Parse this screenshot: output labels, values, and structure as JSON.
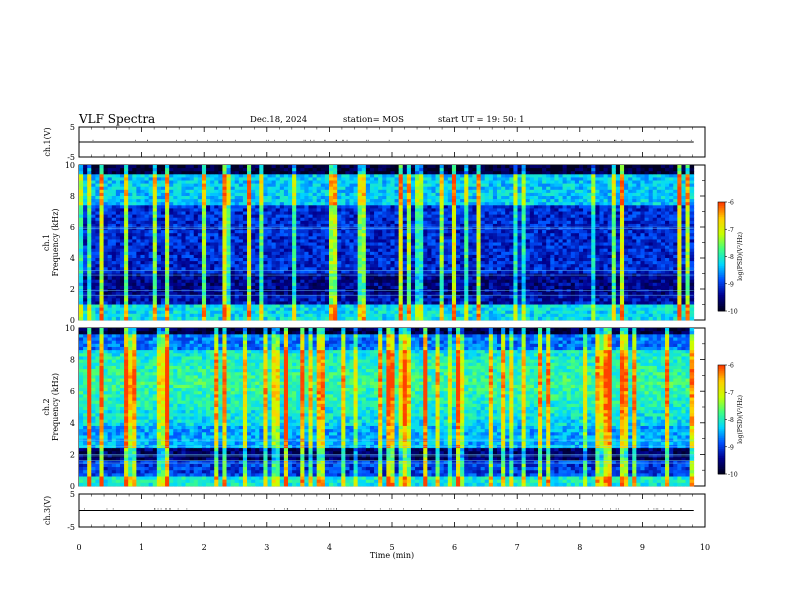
{
  "header": {
    "title": "VLF Spectra",
    "date": "Dec.18, 2024",
    "station": "station= MOS",
    "start": "start  UT =   19: 50: 1"
  },
  "chart_data": [
    {
      "type": "line",
      "ylabel": "ch.1(V)",
      "ylim": [
        -5,
        5
      ],
      "yticks": [
        "5",
        "-5"
      ],
      "x": [
        0,
        9.82
      ],
      "values": [
        0,
        0
      ]
    },
    {
      "type": "heatmap",
      "ylabel_line1": "ch.1",
      "ylabel_line2": "Frequency (kHz)",
      "ylim": [
        0,
        10
      ],
      "yticks": [
        "0",
        "2",
        "4",
        "6",
        "8",
        "10"
      ],
      "colorbar": {
        "label": "log(PSD)(V²/Hz)",
        "range": [
          -10,
          -6
        ],
        "ticks": [
          "-6",
          "-7",
          "-8",
          "-9",
          "-10"
        ]
      }
    },
    {
      "type": "heatmap",
      "ylabel_line1": "ch.2",
      "ylabel_line2": "Frequency (kHz)",
      "ylim": [
        0,
        10
      ],
      "yticks": [
        "0",
        "2",
        "4",
        "6",
        "8",
        "10"
      ],
      "colorbar": {
        "label": "log(PSD)(V²/Hz)",
        "range": [
          -10,
          -6
        ],
        "ticks": [
          "-6",
          "-7",
          "-8",
          "-9",
          "-10"
        ]
      }
    },
    {
      "type": "line",
      "ylabel": "ch.3(V)",
      "ylim": [
        -5,
        5
      ],
      "yticks": [
        "5",
        "-5"
      ],
      "x": [
        0,
        9.82
      ],
      "values": [
        0,
        0
      ]
    }
  ],
  "xaxis": {
    "label": "Time (min)",
    "range": [
      0,
      10
    ],
    "ticks": [
      "0",
      "1",
      "2",
      "3",
      "4",
      "5",
      "6",
      "7",
      "8",
      "9",
      "10"
    ]
  },
  "colors": {
    "background": "#ffffff",
    "axis": "#000000",
    "colormap": [
      "#000020",
      "#00008f",
      "#0050ff",
      "#00d8ff",
      "#40ff80",
      "#c8ff00",
      "#ffd000",
      "#ff4000",
      "#ffffff"
    ]
  }
}
